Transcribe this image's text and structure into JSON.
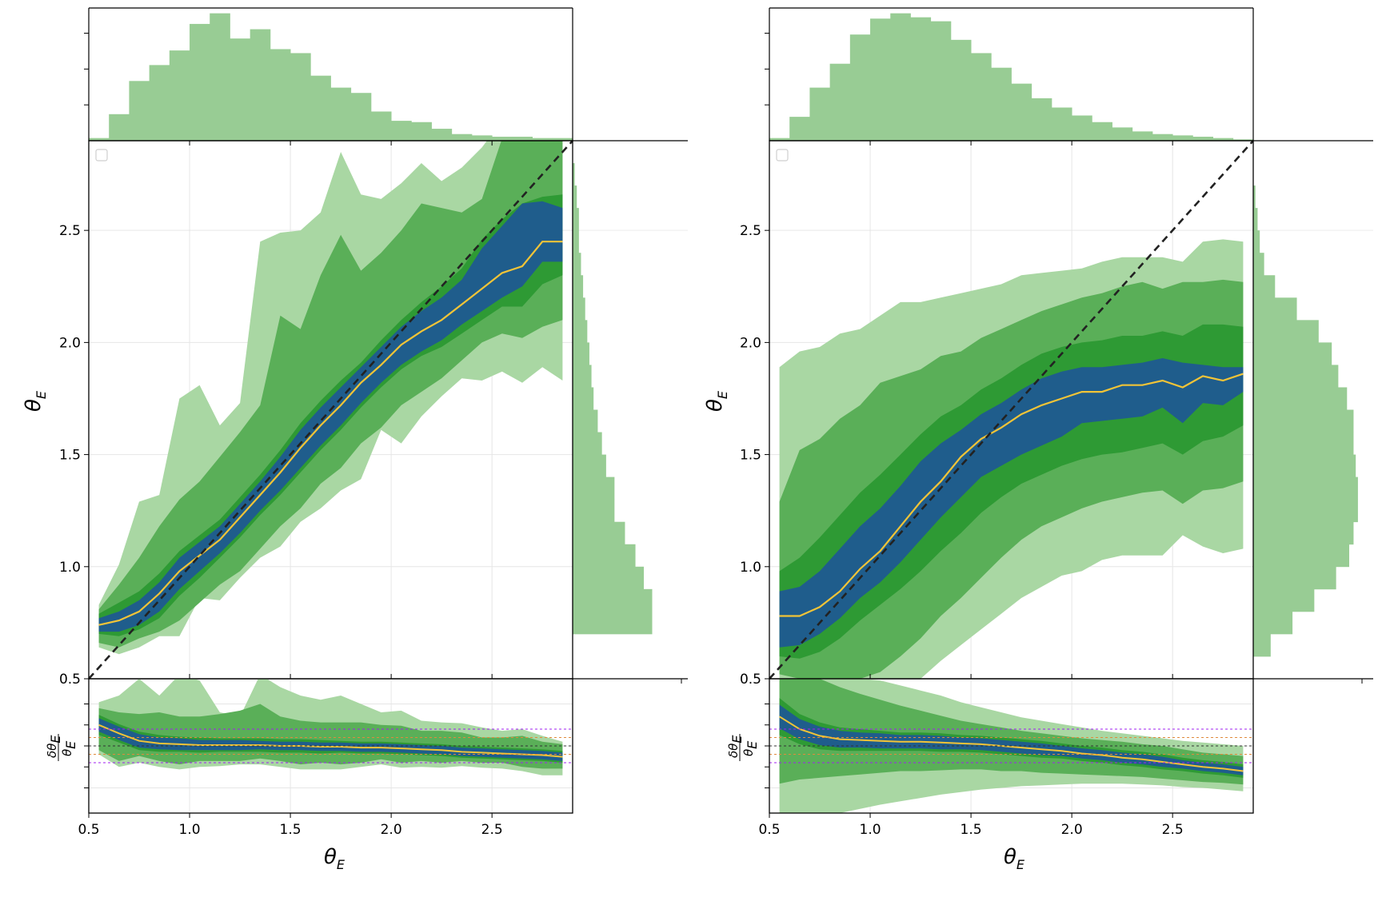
{
  "figure": {
    "panels": [
      {
        "id": "left",
        "xlabel": "θ",
        "xlabel_sub": "E",
        "ylabel": "θ",
        "ylabel_sub": "E",
        "resid_label_top": "δθ",
        "resid_label_bottom": "θ",
        "resid_sub": "E"
      },
      {
        "id": "right",
        "xlabel": "θ",
        "xlabel_sub": "E",
        "ylabel": "θ",
        "ylabel_sub": "E",
        "resid_label_top": "δθ",
        "resid_label_bottom": "θ",
        "resid_sub": "E"
      }
    ],
    "x_ticks": [
      "0.5",
      "1.0",
      "1.5",
      "2.0",
      "2.5"
    ],
    "y_ticks": [
      "0.5",
      "1.0",
      "1.5",
      "2.0",
      "2.5"
    ]
  },
  "chart_data": [
    {
      "type": "area",
      "title": "",
      "xlabel": "θ_E",
      "ylabel": "θ_E",
      "xlim": [
        0.5,
        2.9
      ],
      "ylim": [
        0.5,
        2.9
      ],
      "grid": true,
      "colors": {
        "band_outer": "#a9d7a3",
        "band_mid": "#5aaf58",
        "band_inner": "#2e9a34",
        "core": "#1f5d8c",
        "median": "#f2c437",
        "identity": "#222222",
        "hist": "#98cc94"
      },
      "x": [
        0.55,
        0.65,
        0.75,
        0.85,
        0.95,
        1.05,
        1.15,
        1.25,
        1.35,
        1.45,
        1.55,
        1.65,
        1.75,
        1.85,
        1.95,
        2.05,
        2.15,
        2.25,
        2.35,
        2.45,
        2.55,
        2.65,
        2.75,
        2.85
      ],
      "series": [
        {
          "name": "median",
          "values": [
            0.74,
            0.76,
            0.8,
            0.88,
            0.98,
            1.05,
            1.12,
            1.22,
            1.32,
            1.42,
            1.53,
            1.63,
            1.72,
            1.82,
            1.9,
            1.99,
            2.05,
            2.1,
            2.17,
            2.24,
            2.31,
            2.34,
            2.45,
            2.45
          ]
        },
        {
          "name": "core_low",
          "values": [
            0.71,
            0.71,
            0.74,
            0.8,
            0.9,
            0.98,
            1.06,
            1.15,
            1.25,
            1.34,
            1.44,
            1.54,
            1.63,
            1.73,
            1.82,
            1.9,
            1.96,
            2.01,
            2.08,
            2.14,
            2.2,
            2.25,
            2.36,
            2.36
          ]
        },
        {
          "name": "core_high",
          "values": [
            0.77,
            0.8,
            0.85,
            0.93,
            1.04,
            1.11,
            1.18,
            1.28,
            1.38,
            1.49,
            1.61,
            1.71,
            1.8,
            1.89,
            1.98,
            2.07,
            2.14,
            2.2,
            2.28,
            2.42,
            2.52,
            2.62,
            2.63,
            2.6
          ]
        },
        {
          "name": "inner_low",
          "values": [
            0.7,
            0.69,
            0.72,
            0.77,
            0.87,
            0.95,
            1.04,
            1.13,
            1.23,
            1.32,
            1.42,
            1.52,
            1.61,
            1.71,
            1.8,
            1.88,
            1.94,
            1.98,
            2.04,
            2.1,
            2.16,
            2.16,
            2.26,
            2.3
          ]
        },
        {
          "name": "inner_high",
          "values": [
            0.79,
            0.84,
            0.89,
            0.97,
            1.07,
            1.14,
            1.21,
            1.31,
            1.41,
            1.52,
            1.64,
            1.74,
            1.83,
            1.91,
            2.01,
            2.1,
            2.18,
            2.25,
            2.33,
            2.46,
            2.55,
            2.62,
            2.65,
            2.66
          ]
        },
        {
          "name": "mid_low",
          "values": [
            0.66,
            0.64,
            0.68,
            0.71,
            0.76,
            0.84,
            0.92,
            0.98,
            1.08,
            1.18,
            1.26,
            1.37,
            1.44,
            1.55,
            1.62,
            1.72,
            1.78,
            1.84,
            1.92,
            2.0,
            2.04,
            2.02,
            2.07,
            2.1
          ]
        },
        {
          "name": "mid_high",
          "values": [
            0.81,
            0.92,
            1.04,
            1.18,
            1.3,
            1.38,
            1.49,
            1.6,
            1.72,
            2.12,
            2.06,
            2.3,
            2.48,
            2.32,
            2.4,
            2.5,
            2.62,
            2.6,
            2.58,
            2.64,
            2.91,
            2.98,
            2.94,
            2.9
          ]
        },
        {
          "name": "outer_low",
          "values": [
            0.64,
            0.61,
            0.64,
            0.69,
            0.69,
            0.86,
            0.85,
            0.95,
            1.04,
            1.09,
            1.2,
            1.26,
            1.34,
            1.39,
            1.61,
            1.55,
            1.67,
            1.76,
            1.84,
            1.83,
            1.87,
            1.82,
            1.89,
            1.83
          ]
        },
        {
          "name": "outer_high",
          "values": [
            0.83,
            1.01,
            1.29,
            1.32,
            1.75,
            1.81,
            1.63,
            1.73,
            2.45,
            2.49,
            2.5,
            2.58,
            2.85,
            2.66,
            2.64,
            2.71,
            2.8,
            2.72,
            2.78,
            2.87,
            2.99,
            2.96,
            2.93,
            2.95
          ]
        }
      ],
      "top_hist": {
        "bins_from": 0.5,
        "bin_width": 0.1,
        "values": [
          0.02,
          0.2,
          0.45,
          0.57,
          0.68,
          0.88,
          0.96,
          0.77,
          0.84,
          0.69,
          0.66,
          0.49,
          0.4,
          0.36,
          0.22,
          0.15,
          0.14,
          0.09,
          0.05,
          0.04,
          0.03,
          0.03,
          0.02,
          0.02
        ]
      },
      "right_hist": {
        "bins_from": 0.7,
        "bin_width": 0.1,
        "values": [
          0.38,
          0.38,
          0.34,
          0.3,
          0.25,
          0.2,
          0.2,
          0.16,
          0.14,
          0.12,
          0.1,
          0.09,
          0.08,
          0.07,
          0.06,
          0.05,
          0.04,
          0.03,
          0.03,
          0.02,
          0.01
        ]
      },
      "residual": {
        "ylim": [
          -0.8,
          0.8
        ],
        "h_lines": [
          0.2,
          0.1,
          0.0,
          -0.1,
          -0.2
        ],
        "median": [
          0.25,
          0.15,
          0.06,
          0.03,
          0.02,
          0.01,
          0.01,
          0.01,
          0.01,
          0.0,
          0.0,
          -0.01,
          -0.01,
          -0.02,
          -0.02,
          -0.03,
          -0.04,
          -0.05,
          -0.07,
          -0.08,
          -0.09,
          -0.1,
          -0.11,
          -0.13
        ],
        "core_half": [
          0.08,
          0.08,
          0.08,
          0.07,
          0.07,
          0.06,
          0.06,
          0.06,
          0.05,
          0.05,
          0.05,
          0.05,
          0.05,
          0.05,
          0.05,
          0.05,
          0.05,
          0.05,
          0.05,
          0.05,
          0.05,
          0.05,
          0.05,
          0.05
        ],
        "inner_half": [
          0.12,
          0.11,
          0.11,
          0.1,
          0.09,
          0.09,
          0.08,
          0.08,
          0.08,
          0.08,
          0.08,
          0.08,
          0.07,
          0.07,
          0.07,
          0.07,
          0.07,
          0.07,
          0.07,
          0.07,
          0.07,
          0.07,
          0.07,
          0.07
        ],
        "mid_low": [
          -0.05,
          -0.18,
          -0.12,
          -0.18,
          -0.22,
          -0.18,
          -0.18,
          -0.18,
          -0.15,
          -0.18,
          -0.22,
          -0.2,
          -0.22,
          -0.2,
          -0.16,
          -0.2,
          -0.18,
          -0.2,
          -0.18,
          -0.2,
          -0.2,
          -0.25,
          -0.27,
          -0.27
        ],
        "mid_high": [
          0.45,
          0.4,
          0.38,
          0.4,
          0.35,
          0.35,
          0.38,
          0.42,
          0.5,
          0.35,
          0.3,
          0.28,
          0.28,
          0.28,
          0.25,
          0.24,
          0.18,
          0.18,
          0.16,
          0.1,
          0.1,
          0.12,
          0.05,
          0.02
        ],
        "outer_low": [
          -0.1,
          -0.25,
          -0.2,
          -0.25,
          -0.28,
          -0.25,
          -0.24,
          -0.22,
          -0.22,
          -0.25,
          -0.28,
          -0.28,
          -0.28,
          -0.25,
          -0.22,
          -0.26,
          -0.25,
          -0.26,
          -0.24,
          -0.26,
          -0.27,
          -0.3,
          -0.35,
          -0.35
        ],
        "outer_high": [
          0.52,
          0.6,
          0.8,
          0.6,
          0.85,
          0.78,
          0.4,
          0.35,
          0.85,
          0.7,
          0.6,
          0.55,
          0.6,
          0.5,
          0.4,
          0.42,
          0.3,
          0.28,
          0.27,
          0.22,
          0.18,
          0.2,
          0.12,
          0.05
        ]
      }
    },
    {
      "type": "area",
      "title": "",
      "xlabel": "θ_E",
      "ylabel": "θ_E",
      "xlim": [
        0.5,
        2.9
      ],
      "ylim": [
        0.5,
        2.9
      ],
      "grid": true,
      "colors": {
        "band_outer": "#a9d7a3",
        "band_mid": "#5aaf58",
        "band_inner": "#2e9a34",
        "core": "#1f5d8c",
        "median": "#f2c437",
        "identity": "#222222",
        "hist": "#98cc94"
      },
      "x": [
        0.55,
        0.65,
        0.75,
        0.85,
        0.95,
        1.05,
        1.15,
        1.25,
        1.35,
        1.45,
        1.55,
        1.65,
        1.75,
        1.85,
        1.95,
        2.05,
        2.15,
        2.25,
        2.35,
        2.45,
        2.55,
        2.65,
        2.75,
        2.85
      ],
      "series": [
        {
          "name": "median",
          "values": [
            0.78,
            0.78,
            0.82,
            0.89,
            0.99,
            1.07,
            1.18,
            1.29,
            1.38,
            1.49,
            1.57,
            1.62,
            1.68,
            1.72,
            1.75,
            1.78,
            1.78,
            1.81,
            1.81,
            1.83,
            1.8,
            1.85,
            1.83,
            1.86
          ]
        },
        {
          "name": "core_low",
          "values": [
            0.64,
            0.65,
            0.7,
            0.77,
            0.86,
            0.93,
            1.02,
            1.12,
            1.22,
            1.31,
            1.4,
            1.45,
            1.5,
            1.54,
            1.58,
            1.64,
            1.65,
            1.66,
            1.67,
            1.71,
            1.64,
            1.73,
            1.72,
            1.78
          ]
        },
        {
          "name": "core_high",
          "values": [
            0.89,
            0.91,
            0.98,
            1.08,
            1.18,
            1.26,
            1.36,
            1.47,
            1.55,
            1.61,
            1.68,
            1.73,
            1.79,
            1.84,
            1.87,
            1.89,
            1.89,
            1.9,
            1.91,
            1.93,
            1.91,
            1.9,
            1.89,
            1.89
          ]
        },
        {
          "name": "inner_low",
          "values": [
            0.6,
            0.59,
            0.62,
            0.68,
            0.76,
            0.83,
            0.9,
            0.98,
            1.07,
            1.15,
            1.24,
            1.31,
            1.37,
            1.41,
            1.45,
            1.48,
            1.5,
            1.51,
            1.53,
            1.55,
            1.5,
            1.56,
            1.58,
            1.63
          ]
        },
        {
          "name": "inner_high",
          "values": [
            0.98,
            1.04,
            1.13,
            1.23,
            1.33,
            1.41,
            1.5,
            1.59,
            1.67,
            1.72,
            1.79,
            1.84,
            1.9,
            1.95,
            1.98,
            2.0,
            2.01,
            2.03,
            2.03,
            2.05,
            2.03,
            2.08,
            2.08,
            2.07
          ]
        },
        {
          "name": "mid_low",
          "values": [
            0.52,
            0.5,
            0.5,
            0.5,
            0.5,
            0.53,
            0.6,
            0.68,
            0.78,
            0.86,
            0.95,
            1.04,
            1.12,
            1.18,
            1.22,
            1.26,
            1.29,
            1.31,
            1.33,
            1.34,
            1.28,
            1.34,
            1.35,
            1.38
          ]
        },
        {
          "name": "mid_high",
          "values": [
            1.29,
            1.52,
            1.57,
            1.66,
            1.72,
            1.82,
            1.85,
            1.88,
            1.94,
            1.96,
            2.02,
            2.06,
            2.1,
            2.14,
            2.17,
            2.2,
            2.22,
            2.25,
            2.27,
            2.24,
            2.27,
            2.27,
            2.28,
            2.27
          ]
        },
        {
          "name": "outer_low",
          "values": [
            0.5,
            0.5,
            0.5,
            0.5,
            0.5,
            0.5,
            0.5,
            0.5,
            0.58,
            0.65,
            0.72,
            0.79,
            0.86,
            0.91,
            0.96,
            0.98,
            1.03,
            1.05,
            1.05,
            1.05,
            1.14,
            1.09,
            1.06,
            1.08
          ]
        },
        {
          "name": "outer_high",
          "values": [
            1.89,
            1.96,
            1.98,
            2.04,
            2.06,
            2.12,
            2.18,
            2.18,
            2.2,
            2.22,
            2.24,
            2.26,
            2.3,
            2.31,
            2.32,
            2.33,
            2.36,
            2.38,
            2.38,
            2.38,
            2.36,
            2.45,
            2.46,
            2.45
          ]
        }
      ],
      "top_hist": {
        "bins_from": 0.5,
        "bin_width": 0.1,
        "values": [
          0.02,
          0.18,
          0.4,
          0.58,
          0.8,
          0.92,
          0.96,
          0.93,
          0.9,
          0.76,
          0.66,
          0.55,
          0.43,
          0.32,
          0.25,
          0.19,
          0.14,
          0.1,
          0.07,
          0.05,
          0.04,
          0.03,
          0.02,
          0.01
        ]
      },
      "right_hist": {
        "bins_from": 0.6,
        "bin_width": 0.1,
        "values": [
          0.08,
          0.18,
          0.28,
          0.38,
          0.44,
          0.46,
          0.48,
          0.48,
          0.47,
          0.46,
          0.46,
          0.43,
          0.39,
          0.36,
          0.3,
          0.2,
          0.1,
          0.05,
          0.03,
          0.02,
          0.01
        ]
      },
      "residual": {
        "ylim": [
          -0.8,
          0.8
        ],
        "h_lines": [
          0.2,
          0.1,
          0.0,
          -0.1,
          -0.2
        ],
        "median": [
          0.35,
          0.2,
          0.12,
          0.08,
          0.07,
          0.06,
          0.05,
          0.05,
          0.04,
          0.03,
          0.02,
          0.0,
          -0.02,
          -0.04,
          -0.06,
          -0.09,
          -0.11,
          -0.14,
          -0.16,
          -0.19,
          -0.22,
          -0.25,
          -0.27,
          -0.3
        ],
        "core_half": [
          0.14,
          0.12,
          0.11,
          0.1,
          0.09,
          0.09,
          0.08,
          0.08,
          0.08,
          0.07,
          0.07,
          0.07,
          0.07,
          0.07,
          0.06,
          0.06,
          0.06,
          0.06,
          0.06,
          0.06,
          0.05,
          0.05,
          0.05,
          0.05
        ],
        "inner_half": [
          0.22,
          0.18,
          0.16,
          0.14,
          0.13,
          0.12,
          0.11,
          0.11,
          0.11,
          0.1,
          0.1,
          0.1,
          0.1,
          0.1,
          0.09,
          0.09,
          0.09,
          0.09,
          0.09,
          0.09,
          0.08,
          0.08,
          0.08,
          0.08
        ],
        "mid_low": [
          -0.45,
          -0.4,
          -0.38,
          -0.36,
          -0.34,
          -0.32,
          -0.3,
          -0.3,
          -0.29,
          -0.28,
          -0.28,
          -0.3,
          -0.3,
          -0.32,
          -0.33,
          -0.34,
          -0.35,
          -0.36,
          -0.37,
          -0.39,
          -0.41,
          -0.43,
          -0.44,
          -0.46
        ],
        "mid_high": [
          0.8,
          0.8,
          0.8,
          0.7,
          0.62,
          0.55,
          0.48,
          0.42,
          0.36,
          0.3,
          0.26,
          0.22,
          0.18,
          0.15,
          0.12,
          0.09,
          0.07,
          0.05,
          0.02,
          0.0,
          -0.04,
          -0.08,
          -0.1,
          -0.12
        ],
        "outer_low": [
          -0.8,
          -0.8,
          -0.8,
          -0.8,
          -0.75,
          -0.7,
          -0.66,
          -0.62,
          -0.58,
          -0.55,
          -0.52,
          -0.5,
          -0.48,
          -0.47,
          -0.46,
          -0.45,
          -0.45,
          -0.45,
          -0.46,
          -0.47,
          -0.49,
          -0.5,
          -0.52,
          -0.54
        ],
        "outer_high": [
          0.8,
          0.8,
          0.8,
          0.8,
          0.8,
          0.78,
          0.72,
          0.66,
          0.6,
          0.52,
          0.46,
          0.4,
          0.34,
          0.3,
          0.26,
          0.22,
          0.18,
          0.15,
          0.12,
          0.09,
          0.06,
          0.04,
          0.02,
          0.0
        ]
      }
    }
  ]
}
